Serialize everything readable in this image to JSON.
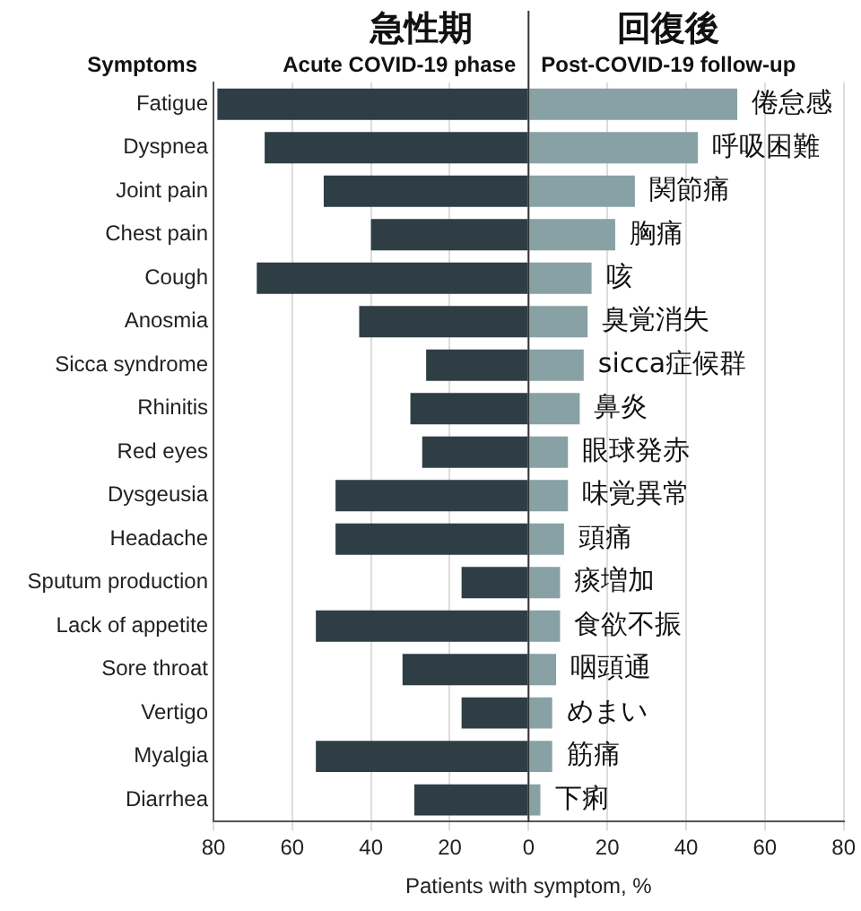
{
  "chart_data": {
    "type": "bar",
    "orientation": "horizontal",
    "stacked": true,
    "ylabel": "Symptoms",
    "xlabel": "Patients with symptom, %",
    "categories": [
      "Fatigue",
      "Dyspnea",
      "Joint pain",
      "Chest pain",
      "Cough",
      "Anosmia",
      "Sicca syndrome",
      "Rhinitis",
      "Red eyes",
      "Dysgeusia",
      "Headache",
      "Sputum production",
      "Lack of appetite",
      "Sore throat",
      "Vertigo",
      "Myalgia",
      "Diarrhea"
    ],
    "series": [
      {
        "name": "Acute COVID-19 phase",
        "color": "#2e3e44",
        "values": [
          -79,
          -67,
          -52,
          -40,
          -69,
          -43,
          -26,
          -30,
          -27,
          -49,
          -49,
          -17,
          -54,
          -32,
          -17,
          -54,
          -29
        ]
      },
      {
        "name": "Post-COVID-19 follow-up",
        "color": "#87a1a4",
        "values": [
          53,
          43,
          27,
          22,
          16,
          15,
          14,
          13,
          10,
          10,
          9,
          8,
          8,
          7,
          6,
          6,
          3
        ]
      }
    ],
    "xlim": [
      -80,
      80
    ],
    "xticks": [
      {
        "value": -80,
        "label": "80"
      },
      {
        "value": -60,
        "label": "60"
      },
      {
        "value": -40,
        "label": "40"
      },
      {
        "value": -20,
        "label": "20"
      },
      0,
      20,
      40,
      60,
      80
    ],
    "grid": "x",
    "legend": false,
    "ref_lines": [
      {
        "axis": "x",
        "value": 0,
        "color": "#333333"
      }
    ],
    "annotations": [
      "急性期",
      "回復後",
      {
        "text": "倦怠感",
        "x": 53,
        "y": "Fatigue"
      },
      {
        "text": "呼吸困難",
        "x": 43,
        "y": "Dyspnea"
      },
      {
        "text": "関節痛",
        "x": 27,
        "y": "Joint pain"
      },
      {
        "text": "胸痛",
        "x": 22,
        "y": "Chest pain"
      },
      {
        "text": "咳",
        "x": 16,
        "y": "Cough"
      },
      {
        "text": "臭覚消失",
        "x": 15,
        "y": "Anosmia"
      },
      {
        "text": "sicca症候群",
        "x": 14,
        "y": "Sicca syndrome"
      },
      {
        "text": "鼻炎",
        "x": 13,
        "y": "Rhinitis"
      },
      {
        "text": "眼球発赤",
        "x": 10,
        "y": "Red eyes"
      },
      {
        "text": "味覚異常",
        "x": 10,
        "y": "Dysgeusia"
      },
      {
        "text": "頭痛",
        "x": 9,
        "y": "Headache"
      },
      {
        "text": "痰増加",
        "x": 8,
        "y": "Sputum production"
      },
      {
        "text": "食欲不振",
        "x": 8,
        "y": "Lack of appetite"
      },
      {
        "text": "咽頭通",
        "x": 7,
        "y": "Sore throat"
      },
      {
        "text": "めまい",
        "x": 6,
        "y": "Vertigo"
      },
      {
        "text": "筋痛",
        "x": 6,
        "y": "Myalgia"
      },
      {
        "text": "下痢",
        "x": 3,
        "y": "Diarrhea"
      }
    ]
  }
}
